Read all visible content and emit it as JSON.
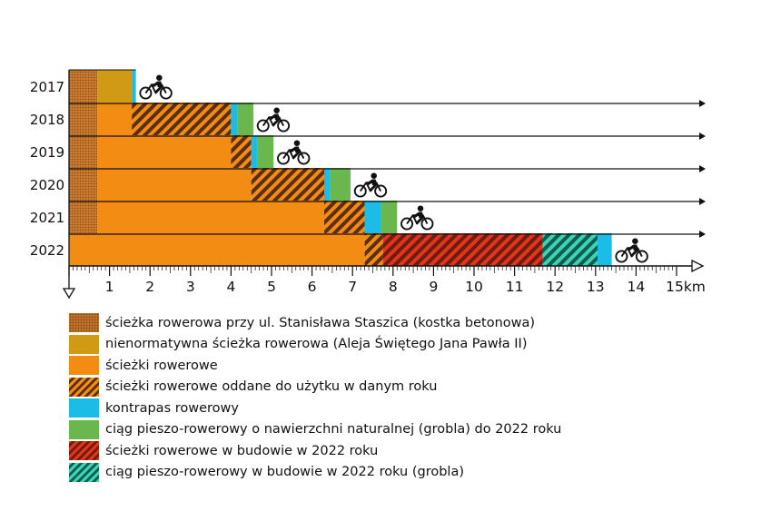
{
  "chart_data": {
    "type": "bar",
    "orientation": "horizontal-stacked",
    "unit": "km",
    "xlim": [
      0,
      15
    ],
    "x_ticks": [
      "1",
      "2",
      "3",
      "4",
      "5",
      "6",
      "7",
      "8",
      "9",
      "10",
      "11",
      "12",
      "13",
      "14",
      "15km"
    ],
    "years": [
      "2017",
      "2018",
      "2019",
      "2020",
      "2021",
      "2022"
    ],
    "rows": [
      {
        "year": "2017",
        "segments": [
          {
            "category": "kostka",
            "start": 0,
            "end": 0.7
          },
          {
            "category": "nienormatywna",
            "start": 0.7,
            "end": 1.55
          },
          {
            "category": "kontrapas",
            "start": 1.55,
            "end": 1.65
          }
        ]
      },
      {
        "year": "2018",
        "segments": [
          {
            "category": "kostka",
            "start": 0,
            "end": 0.7
          },
          {
            "category": "sciezki",
            "start": 0.7,
            "end": 1.55
          },
          {
            "category": "oddane",
            "start": 1.55,
            "end": 4.0
          },
          {
            "category": "kontrapas",
            "start": 4.0,
            "end": 4.15
          },
          {
            "category": "ciag",
            "start": 4.15,
            "end": 4.55
          }
        ]
      },
      {
        "year": "2019",
        "segments": [
          {
            "category": "kostka",
            "start": 0,
            "end": 0.7
          },
          {
            "category": "sciezki",
            "start": 0.7,
            "end": 4.0
          },
          {
            "category": "oddane",
            "start": 4.0,
            "end": 4.5
          },
          {
            "category": "kontrapas",
            "start": 4.5,
            "end": 4.65
          },
          {
            "category": "ciag",
            "start": 4.65,
            "end": 5.05
          }
        ]
      },
      {
        "year": "2020",
        "segments": [
          {
            "category": "kostka",
            "start": 0,
            "end": 0.7
          },
          {
            "category": "sciezki",
            "start": 0.7,
            "end": 4.5
          },
          {
            "category": "oddane",
            "start": 4.5,
            "end": 6.3
          },
          {
            "category": "kontrapas",
            "start": 6.3,
            "end": 6.45
          },
          {
            "category": "ciag",
            "start": 6.45,
            "end": 6.95
          }
        ]
      },
      {
        "year": "2021",
        "segments": [
          {
            "category": "kostka",
            "start": 0,
            "end": 0.7
          },
          {
            "category": "sciezki",
            "start": 0.7,
            "end": 6.3
          },
          {
            "category": "oddane",
            "start": 6.3,
            "end": 7.3
          },
          {
            "category": "kontrapas",
            "start": 7.3,
            "end": 7.7
          },
          {
            "category": "ciag",
            "start": 7.7,
            "end": 8.1
          }
        ]
      },
      {
        "year": "2022",
        "segments": [
          {
            "category": "sciezki",
            "start": 0,
            "end": 7.3
          },
          {
            "category": "oddane",
            "start": 7.3,
            "end": 7.75
          },
          {
            "category": "budowa",
            "start": 7.75,
            "end": 11.7
          },
          {
            "category": "ciag_budowa",
            "start": 11.7,
            "end": 13.05
          },
          {
            "category": "kontrapas",
            "start": 13.05,
            "end": 13.4
          }
        ]
      }
    ],
    "legend": [
      {
        "key": "kostka",
        "label": "ścieżka rowerowa przy ul. Stanisława Staszica (kostka betonowa)",
        "color": "#C87A2E",
        "pattern": "dots"
      },
      {
        "key": "nienormatywna",
        "label": "nienormatywna ścieżka rowerowa (Aleja Świętego Jana Pawła II)",
        "color": "#D19A14",
        "pattern": "solid"
      },
      {
        "key": "sciezki",
        "label": "ścieżki rowerowe",
        "color": "#F28C13",
        "pattern": "solid"
      },
      {
        "key": "oddane",
        "label": "ścieżki rowerowe oddane do użytku w danym roku",
        "color": "#F28C13",
        "stripe": "#5A2E12",
        "pattern": "hatch"
      },
      {
        "key": "kontrapas",
        "label": "kontrapas rowerowy",
        "color": "#1BBDE6",
        "pattern": "solid"
      },
      {
        "key": "ciag",
        "label": "ciąg pieszo-rowerowy o nawierzchni naturalnej (grobla) do 2022 roku",
        "color": "#6AB74F",
        "pattern": "solid"
      },
      {
        "key": "budowa",
        "label": "ścieżki rowerowe w budowie w 2022 roku",
        "color": "#E5341C",
        "stripe": "#6B1E10",
        "pattern": "hatch"
      },
      {
        "key": "ciag_budowa",
        "label": "ciąg pieszo-rowerowy w budowie w 2022 roku (grobla)",
        "color": "#3FD3B0",
        "stripe": "#0E5C56",
        "pattern": "hatch"
      }
    ],
    "marker_icon": "bicycle-rider-icon",
    "grid": false
  }
}
